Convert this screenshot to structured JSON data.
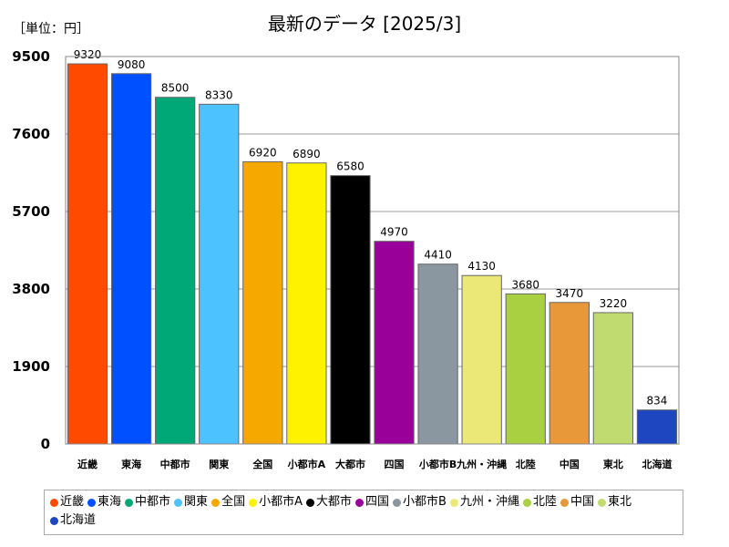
{
  "chart_data": {
    "type": "bar",
    "title": "最新のデータ [2025/3]",
    "unit_label": "［単位：円］",
    "ylim": [
      0,
      9500
    ],
    "yticks": [
      0,
      1900,
      3800,
      5700,
      7600,
      9500
    ],
    "grid": true,
    "legend_position": "bottom",
    "categories": [
      "近畿",
      "東海",
      "中都市",
      "関東",
      "全国",
      "小都市A",
      "大都市",
      "四国",
      "小都市B",
      "九州・沖縄",
      "北陸",
      "中国",
      "東北",
      "北海道"
    ],
    "tick_labels": [
      "近畿",
      "東海",
      "中都市",
      "関東",
      "全国",
      "小都市A",
      "大都市",
      "四国",
      "小都市B",
      "九州・沖縄",
      "北陸",
      "中国",
      "東北",
      "北海道"
    ],
    "values": [
      9320,
      9080,
      8500,
      8330,
      6920,
      6890,
      6580,
      4970,
      4410,
      4130,
      3680,
      3470,
      3220,
      834
    ],
    "colors": [
      "#ff4a00",
      "#0050ff",
      "#00a878",
      "#4cc3ff",
      "#f5a800",
      "#fff200",
      "#000000",
      "#990099",
      "#8a96a0",
      "#ece878",
      "#a8d040",
      "#e89838",
      "#c0dc70",
      "#1e46c0"
    ]
  }
}
